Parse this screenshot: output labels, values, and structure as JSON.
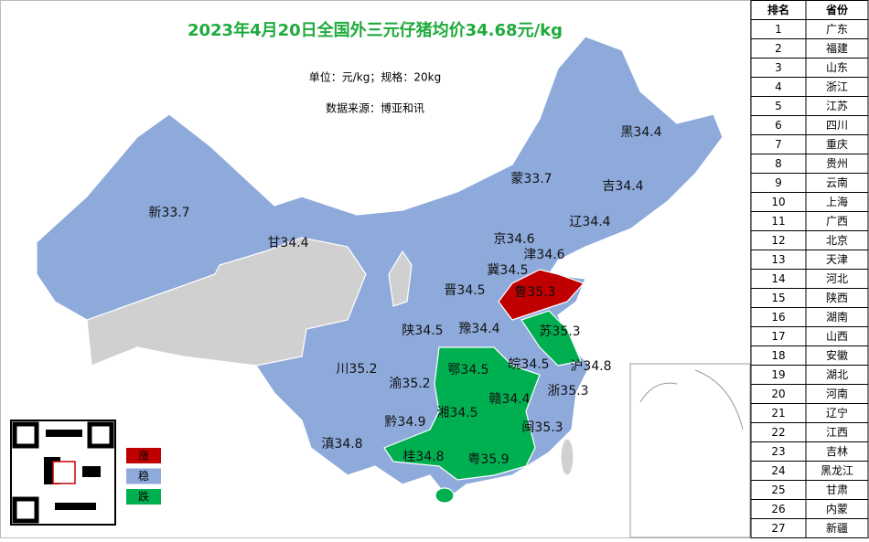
{
  "title": "2023年4月20日全国外三元仔猪均价34.68元/kg",
  "unit_note": "单位：元/kg；规格：20kg",
  "source": "数据来源：博亚和讯",
  "legend": [
    {
      "label": "涨",
      "color": "#c00000"
    },
    {
      "label": "稳",
      "color": "#8eaadb"
    },
    {
      "label": "跌",
      "color": "#00b050"
    }
  ],
  "map_labels": [
    "黑34.4",
    "蒙33.7",
    "吉34.4",
    "新33.7",
    "辽34.4",
    "甘34.4",
    "京34.6",
    "津34.6",
    "冀34.5",
    "晋34.5",
    "鲁35.3",
    "陕34.5",
    "豫34.4",
    "苏35.3",
    "川35.2",
    "皖34.5",
    "沪34.8",
    "鄂34.5",
    "渝35.2",
    "浙35.3",
    "赣34.4",
    "湘34.5",
    "黔34.9",
    "闽35.3",
    "滇34.8",
    "桂34.8",
    "粤35.9"
  ],
  "table": {
    "headers": [
      "排名",
      "省份"
    ],
    "rows": [
      [
        1,
        "广东"
      ],
      [
        2,
        "福建"
      ],
      [
        3,
        "山东"
      ],
      [
        4,
        "浙江"
      ],
      [
        5,
        "江苏"
      ],
      [
        6,
        "四川"
      ],
      [
        7,
        "重庆"
      ],
      [
        8,
        "贵州"
      ],
      [
        9,
        "云南"
      ],
      [
        10,
        "上海"
      ],
      [
        11,
        "广西"
      ],
      [
        12,
        "北京"
      ],
      [
        13,
        "天津"
      ],
      [
        14,
        "河北"
      ],
      [
        15,
        "陕西"
      ],
      [
        16,
        "湖南"
      ],
      [
        17,
        "山西"
      ],
      [
        18,
        "安徽"
      ],
      [
        19,
        "湖北"
      ],
      [
        20,
        "河南"
      ],
      [
        21,
        "辽宁"
      ],
      [
        22,
        "江西"
      ],
      [
        23,
        "吉林"
      ],
      [
        24,
        "黑龙江"
      ],
      [
        25,
        "甘肃"
      ],
      [
        26,
        "内蒙"
      ],
      [
        27,
        "新疆"
      ]
    ]
  }
}
